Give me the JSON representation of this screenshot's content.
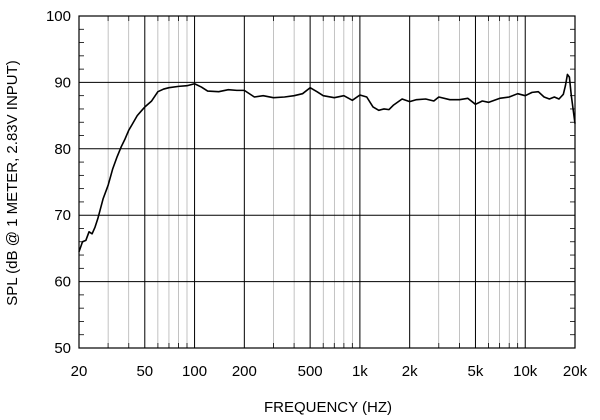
{
  "chart_data": {
    "type": "line",
    "title": "",
    "xlabel": "FREQUENCY  (HZ)",
    "ylabel": "SPL (dB @ 1 METER, 2.83V INPUT)",
    "x_scale": "log",
    "xlim": [
      20,
      20000
    ],
    "ylim": [
      50,
      100
    ],
    "grid": true,
    "legend": "none",
    "line_color": "#000000",
    "x_ticks": [
      {
        "value": 20,
        "label": "20"
      },
      {
        "value": 50,
        "label": "50"
      },
      {
        "value": 100,
        "label": "100"
      },
      {
        "value": 200,
        "label": "200"
      },
      {
        "value": 500,
        "label": "500"
      },
      {
        "value": 1000,
        "label": "1k"
      },
      {
        "value": 2000,
        "label": "2k"
      },
      {
        "value": 5000,
        "label": "5k"
      },
      {
        "value": 10000,
        "label": "10k"
      },
      {
        "value": 20000,
        "label": "20k"
      }
    ],
    "y_ticks": [
      {
        "value": 50,
        "label": "50"
      },
      {
        "value": 60,
        "label": "60"
      },
      {
        "value": 70,
        "label": "70"
      },
      {
        "value": 80,
        "label": "80"
      },
      {
        "value": 90,
        "label": "90"
      },
      {
        "value": 100,
        "label": "100"
      }
    ],
    "series": [
      {
        "x": [
          20,
          21,
          22,
          23,
          24,
          25,
          26,
          28,
          30,
          32,
          34,
          36,
          38,
          40,
          42,
          45,
          48,
          50,
          55,
          60,
          65,
          70,
          80,
          90,
          100,
          110,
          120,
          140,
          160,
          180,
          200,
          230,
          260,
          300,
          350,
          400,
          450,
          500,
          550,
          600,
          700,
          800,
          900,
          1000,
          1100,
          1200,
          1300,
          1400,
          1500,
          1600,
          1800,
          2000,
          2200,
          2500,
          2800,
          3000,
          3500,
          4000,
          4500,
          5000,
          5500,
          6000,
          7000,
          8000,
          9000,
          10000,
          11000,
          12000,
          13000,
          14000,
          15000,
          16000,
          17000,
          17500,
          18000,
          18500,
          19000,
          20000
        ],
        "values": [
          64.5,
          66.0,
          66.2,
          67.5,
          67.2,
          68.2,
          69.5,
          72.5,
          74.5,
          77.0,
          78.8,
          80.3,
          81.5,
          82.8,
          83.7,
          85.0,
          85.8,
          86.3,
          87.2,
          88.6,
          89.0,
          89.2,
          89.4,
          89.5,
          89.8,
          89.3,
          88.7,
          88.6,
          88.9,
          88.8,
          88.8,
          87.8,
          88.0,
          87.7,
          87.8,
          88.0,
          88.3,
          89.2,
          88.6,
          88.0,
          87.7,
          88.0,
          87.3,
          88.1,
          87.8,
          86.3,
          85.8,
          86.0,
          85.9,
          86.6,
          87.5,
          87.1,
          87.4,
          87.5,
          87.2,
          87.8,
          87.4,
          87.4,
          87.6,
          86.7,
          87.2,
          87.0,
          87.6,
          87.8,
          88.3,
          88.0,
          88.5,
          88.6,
          87.8,
          87.5,
          87.8,
          87.5,
          88.2,
          89.5,
          91.2,
          90.8,
          88.0,
          83.8
        ]
      }
    ]
  }
}
